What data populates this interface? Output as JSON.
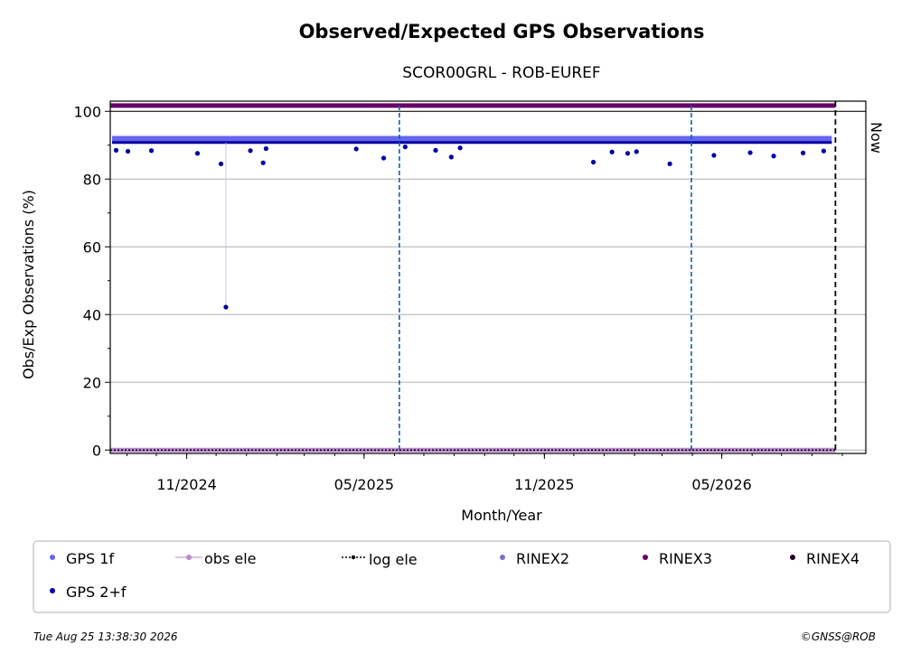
{
  "chart_data": {
    "type": "scatter",
    "title": "Observed/Expected GPS Observations",
    "subtitle": "SCOR00GRL - ROB-EUREF",
    "xlabel": "Month/Year",
    "ylabel": "Obs/Exp Observations (%)",
    "ylim": [
      -1,
      103
    ],
    "xlim": [
      "2024-08-15",
      "2026-09-25"
    ],
    "yticks": [
      0,
      20,
      40,
      60,
      80,
      100
    ],
    "xticks": [
      {
        "date": "2024-11-01",
        "label": "11/2024"
      },
      {
        "date": "2025-05-01",
        "label": "05/2025"
      },
      {
        "date": "2025-11-01",
        "label": "11/2025"
      },
      {
        "date": "2026-05-01",
        "label": "05/2026"
      }
    ],
    "grid": "horizontal",
    "now": {
      "date": "2026-08-25",
      "label": "Now"
    },
    "events": [
      "2025-06-06",
      "2026-03-31"
    ],
    "series": [
      {
        "name": "GPS 1f",
        "color": "#6666ee",
        "level": 91.8
      },
      {
        "name": "obs ele",
        "color": "#bb88cc",
        "level": 0
      },
      {
        "name": "log ele",
        "color": "#000000",
        "level": 0
      },
      {
        "name": "RINEX2",
        "color": "#7b6fc0"
      },
      {
        "name": "RINEX3",
        "color": "#660066",
        "level": 101.7
      },
      {
        "name": "RINEX4",
        "color": "#220022"
      },
      {
        "name": "GPS 2+f",
        "color": "#0000a0",
        "level": 90.8
      }
    ],
    "dips": [
      {
        "date": "2024-08-21",
        "value": 88.5
      },
      {
        "date": "2024-09-02",
        "value": 88.2
      },
      {
        "date": "2024-09-26",
        "value": 88.4
      },
      {
        "date": "2024-11-12",
        "value": 87.6
      },
      {
        "date": "2024-12-06",
        "value": 84.5
      },
      {
        "date": "2024-12-11",
        "value": 42.2
      },
      {
        "date": "2025-01-05",
        "value": 88.4
      },
      {
        "date": "2025-01-18",
        "value": 84.8
      },
      {
        "date": "2025-01-21",
        "value": 89.0
      },
      {
        "date": "2025-04-23",
        "value": 88.9
      },
      {
        "date": "2025-05-21",
        "value": 86.2
      },
      {
        "date": "2025-06-12",
        "value": 89.5
      },
      {
        "date": "2025-07-13",
        "value": 88.5
      },
      {
        "date": "2025-07-29",
        "value": 86.5
      },
      {
        "date": "2025-08-07",
        "value": 89.2
      },
      {
        "date": "2025-12-21",
        "value": 85.0
      },
      {
        "date": "2026-01-09",
        "value": 88.0
      },
      {
        "date": "2026-01-25",
        "value": 87.6
      },
      {
        "date": "2026-02-03",
        "value": 88.1
      },
      {
        "date": "2026-03-09",
        "value": 84.5
      },
      {
        "date": "2026-04-23",
        "value": 87.0
      },
      {
        "date": "2026-05-30",
        "value": 87.8
      },
      {
        "date": "2026-06-23",
        "value": 86.8
      },
      {
        "date": "2026-07-23",
        "value": 87.7
      },
      {
        "date": "2026-08-13",
        "value": 88.3
      }
    ]
  },
  "legend": {
    "items": [
      "GPS 1f",
      "obs ele",
      "log ele",
      "RINEX2",
      "RINEX3",
      "RINEX4",
      "GPS 2+f"
    ]
  },
  "footer": {
    "timestamp": "Tue Aug 25 13:38:30 2026",
    "credit": "©GNSS@ROB"
  }
}
